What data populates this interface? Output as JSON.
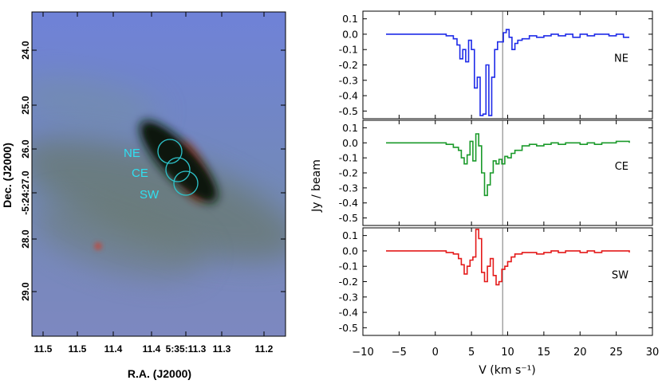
{
  "colors": {
    "sky": "#7887c8",
    "haze": "#6e8089",
    "disk": "#0f1f0f",
    "jet": "#ff3b2a",
    "circles": "#2ec4cc",
    "NE": "#1f2be8",
    "CE": "#1a9a2a",
    "SW": "#e41a1a"
  },
  "chart_data": [
    {
      "type": "image",
      "xlabel": "R.A. (J2000)",
      "ylabel": "Dec. (J2000)",
      "x_ticks": [
        "11.5",
        "11.5",
        "11.4",
        "11.4",
        "5:35:11.3",
        "11.3",
        "11.2"
      ],
      "y_ticks": [
        "24.0",
        "25.0",
        "26.0",
        "-5:24:27.0",
        "28.0",
        "29.0"
      ],
      "regions": [
        {
          "name": "NE",
          "label": "NE"
        },
        {
          "name": "CE",
          "label": "CE"
        },
        {
          "name": "SW",
          "label": "SW"
        }
      ]
    },
    {
      "type": "line",
      "step": true,
      "xlabel": "V (km s⁻¹)",
      "ylabel": "Jy / beam",
      "xlim": [
        -10,
        30
      ],
      "ylim": [
        -0.55,
        0.15
      ],
      "x_ticks": [
        -10,
        -5,
        0,
        5,
        10,
        15,
        20,
        25,
        30
      ],
      "y_ticks": [
        0.1,
        0.0,
        -0.1,
        -0.2,
        -0.3,
        -0.4,
        -0.5
      ],
      "vline": 9.3,
      "series": [
        {
          "name": "NE",
          "color": "#1f2be8",
          "x": [
            -6.8,
            -2,
            0,
            1.5,
            2.5,
            3,
            3.4,
            3.8,
            4.2,
            4.6,
            5,
            5.4,
            5.8,
            6.2,
            6.6,
            7,
            7.4,
            7.8,
            8.2,
            8.6,
            9,
            9.4,
            9.8,
            10.2,
            10.6,
            11,
            11.4,
            12,
            13,
            14,
            15,
            16,
            17,
            18,
            19,
            20,
            21,
            22,
            23,
            24,
            25,
            26,
            26.8
          ],
          "y": [
            0,
            0,
            0,
            -0.01,
            -0.03,
            -0.07,
            -0.16,
            -0.1,
            -0.18,
            -0.04,
            -0.1,
            -0.35,
            -0.28,
            -0.53,
            -0.52,
            -0.2,
            -0.53,
            -0.28,
            -0.1,
            -0.05,
            -0.05,
            0.01,
            0.03,
            -0.02,
            -0.1,
            -0.06,
            -0.04,
            -0.03,
            -0.01,
            -0.02,
            -0.01,
            0,
            -0.01,
            0,
            -0.02,
            0,
            -0.01,
            0,
            0,
            -0.01,
            0,
            -0.02,
            -0.02
          ]
        },
        {
          "name": "CE",
          "color": "#1a9a2a",
          "x": [
            -6.8,
            -2,
            0,
            1.5,
            2.5,
            3.2,
            3.6,
            4,
            4.4,
            4.8,
            5.2,
            5.6,
            6,
            6.4,
            6.8,
            7.2,
            7.6,
            8,
            8.4,
            8.8,
            9.2,
            9.6,
            10,
            10.5,
            11,
            12,
            13,
            14,
            15,
            16,
            17,
            18,
            19,
            20,
            21,
            22,
            23,
            24,
            25,
            26,
            26.8
          ],
          "y": [
            0,
            0,
            0,
            -0.01,
            -0.03,
            -0.05,
            -0.1,
            -0.14,
            -0.08,
            0.01,
            -0.12,
            0.06,
            -0.02,
            -0.2,
            -0.35,
            -0.28,
            -0.2,
            -0.12,
            -0.14,
            -0.11,
            -0.14,
            -0.09,
            -0.1,
            -0.07,
            -0.05,
            -0.02,
            -0.01,
            -0.02,
            -0.01,
            0,
            -0.01,
            0,
            0,
            -0.01,
            0,
            -0.01,
            0,
            0,
            0.01,
            0.01,
            0
          ]
        },
        {
          "name": "SW",
          "color": "#e41a1a",
          "x": [
            -6.8,
            -2,
            0,
            1.5,
            2.5,
            3.2,
            3.6,
            4,
            4.4,
            4.8,
            5.2,
            5.6,
            6,
            6.4,
            6.8,
            7.2,
            7.6,
            8,
            8.4,
            8.8,
            9.2,
            9.6,
            10,
            10.5,
            11,
            12,
            13,
            14,
            15,
            16,
            17,
            18,
            19,
            20,
            21,
            22,
            23,
            24,
            25,
            26,
            26.8
          ],
          "y": [
            0,
            0,
            0,
            -0.01,
            -0.02,
            -0.05,
            -0.09,
            -0.15,
            -0.1,
            -0.06,
            -0.04,
            0.14,
            0.08,
            -0.14,
            -0.2,
            -0.1,
            -0.05,
            -0.16,
            -0.22,
            -0.2,
            -0.12,
            -0.1,
            -0.07,
            -0.04,
            -0.02,
            -0.01,
            -0.01,
            -0.02,
            -0.01,
            0,
            -0.01,
            0,
            0,
            -0.01,
            0,
            -0.01,
            0,
            0,
            0,
            0,
            -0.01
          ]
        }
      ]
    }
  ]
}
